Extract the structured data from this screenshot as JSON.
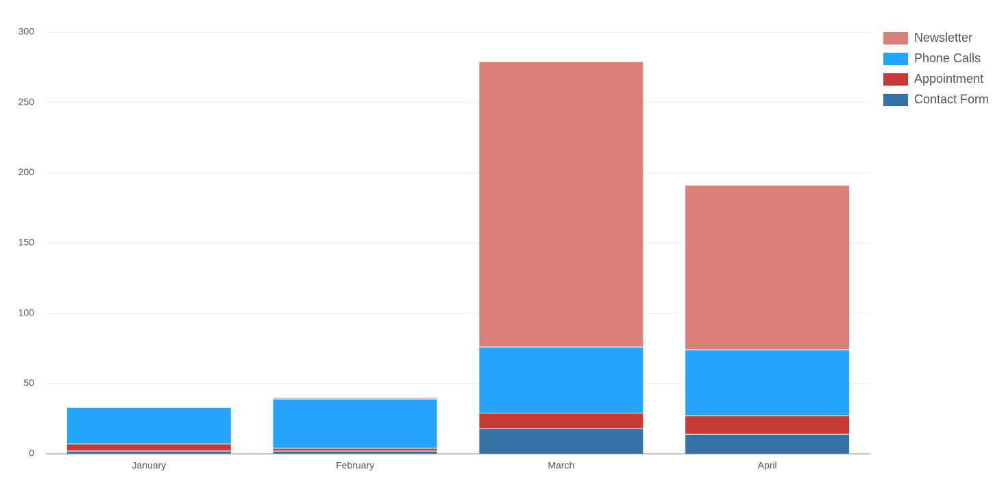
{
  "chart_data": {
    "type": "stacked_bar",
    "categories": [
      "January",
      "February",
      "March",
      "April"
    ],
    "series": [
      {
        "name": "Contact Form",
        "color": "#3572a8",
        "values": [
          2,
          2,
          18,
          14
        ]
      },
      {
        "name": "Appointment",
        "color": "#c73a36",
        "values": [
          5,
          2,
          11,
          13
        ]
      },
      {
        "name": "Phone Calls",
        "color": "#25a4fc",
        "values": [
          26,
          35,
          47,
          47
        ]
      },
      {
        "name": "Newsletter",
        "color": "#dc7f79",
        "values": [
          0,
          1,
          203,
          117
        ]
      }
    ],
    "ylim": [
      0,
      300
    ],
    "yticks": [
      0,
      50,
      100,
      150,
      200,
      250,
      300
    ],
    "grid": true,
    "legend": "top-right"
  }
}
